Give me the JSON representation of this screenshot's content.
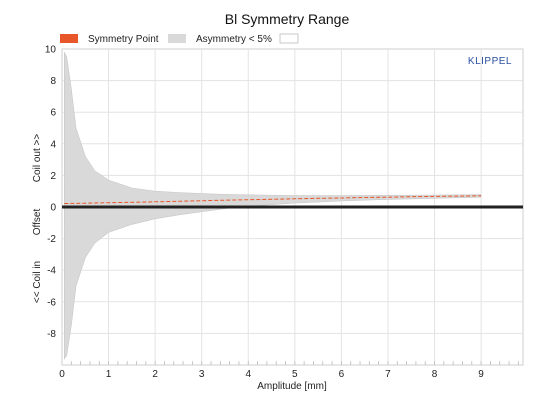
{
  "chart_data": {
    "type": "area",
    "title": "Bl Symmetry Range",
    "xlabel": "Amplitude [mm]",
    "ylabel_parts": [
      "<< Coil in",
      "Offset",
      "Coil out >>"
    ],
    "xlim": [
      0,
      9.9
    ],
    "ylim": [
      -10,
      10
    ],
    "x_ticks": [
      0,
      1,
      2,
      3,
      4,
      5,
      6,
      7,
      8,
      9
    ],
    "y_ticks": [
      -8,
      -6,
      -4,
      -2,
      0,
      2,
      4,
      6,
      8,
      10
    ],
    "grid": true,
    "brand": "KLIPPEL",
    "legend": [
      {
        "label": "Symmetry Point",
        "color": "#e8572a"
      },
      {
        "label": "Asymmetry < 5%",
        "color": "#d9d9d9"
      },
      {
        "label": "",
        "color": "#ffffff"
      }
    ],
    "series": [
      {
        "name": "Symmetry Point",
        "color": "#e8572a",
        "x": [
          0.05,
          0.5,
          1,
          1.5,
          2,
          2.5,
          3,
          3.5,
          4,
          4.5,
          5,
          5.5,
          6,
          6.5,
          7,
          7.5,
          8,
          8.5,
          9.0
        ],
        "y": [
          0.22,
          0.24,
          0.27,
          0.3,
          0.33,
          0.36,
          0.4,
          0.43,
          0.46,
          0.49,
          0.52,
          0.55,
          0.57,
          0.6,
          0.62,
          0.65,
          0.67,
          0.69,
          0.71
        ]
      },
      {
        "name": "Asymmetry < 5%",
        "color": "#d9d9d9",
        "x": [
          0.05,
          0.1,
          0.2,
          0.3,
          0.5,
          0.7,
          1,
          1.5,
          2,
          2.5,
          3,
          3.5,
          4,
          5,
          6,
          7,
          8,
          9.0
        ],
        "upper": [
          9.8,
          9.5,
          7.5,
          5.0,
          3.2,
          2.3,
          1.7,
          1.2,
          1.0,
          0.92,
          0.85,
          0.8,
          0.77,
          0.73,
          0.73,
          0.74,
          0.76,
          0.78
        ],
        "lower": [
          -9.6,
          -9.4,
          -7.5,
          -5.0,
          -3.2,
          -2.3,
          -1.6,
          -1.1,
          -0.75,
          -0.5,
          -0.3,
          -0.1,
          0.05,
          0.25,
          0.38,
          0.48,
          0.55,
          0.62
        ]
      }
    ],
    "zero_line": 0
  }
}
